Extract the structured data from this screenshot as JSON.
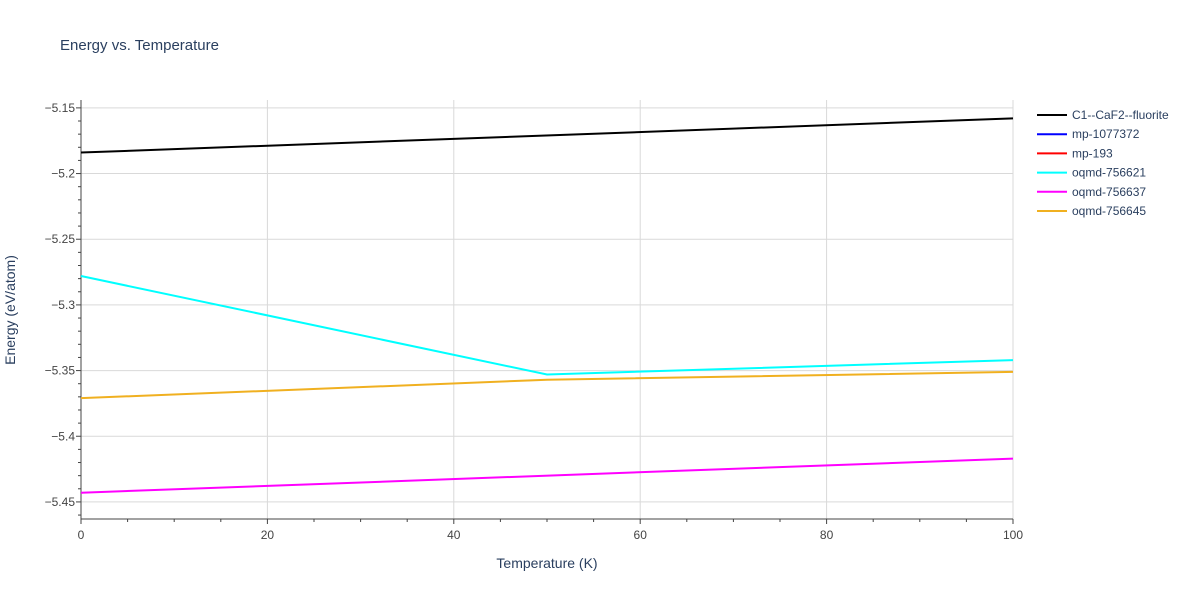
{
  "chart_data": {
    "type": "line",
    "title": "Energy vs. Temperature",
    "xlabel": "Temperature (K)",
    "ylabel": "Energy (eV/atom)",
    "xlim": [
      0,
      100
    ],
    "ylim": [
      -5.463,
      -5.144
    ],
    "xticks": [
      0,
      20,
      40,
      60,
      80,
      100
    ],
    "xtick_labels": [
      "0",
      "20",
      "40",
      "60",
      "80",
      "100"
    ],
    "yticks": [
      -5.15,
      -5.2,
      -5.25,
      -5.3,
      -5.35,
      -5.4,
      -5.45
    ],
    "ytick_labels": [
      "−5.15",
      "−5.2",
      "−5.25",
      "−5.3",
      "−5.35",
      "−5.4",
      "−5.45"
    ],
    "grid": true,
    "legend_position": "top-right, outside plot",
    "series": [
      {
        "name": "C1--CaF2--fluorite",
        "color": "#000000",
        "x": [
          0,
          100
        ],
        "y": [
          -5.184,
          -5.158
        ]
      },
      {
        "name": "mp-1077372",
        "color": "#0000ff",
        "x": [],
        "y": []
      },
      {
        "name": "mp-193",
        "color": "#ff0000",
        "x": [],
        "y": []
      },
      {
        "name": "oqmd-756621",
        "color": "#00ffff",
        "x": [
          0,
          50,
          100
        ],
        "y": [
          -5.278,
          -5.353,
          -5.342
        ]
      },
      {
        "name": "oqmd-756637",
        "color": "#ff00ff",
        "x": [
          0,
          100
        ],
        "y": [
          -5.443,
          -5.417
        ]
      },
      {
        "name": "oqmd-756645",
        "color": "#f0b020",
        "x": [
          0,
          50,
          100
        ],
        "y": [
          -5.371,
          -5.357,
          -5.351
        ]
      }
    ]
  }
}
